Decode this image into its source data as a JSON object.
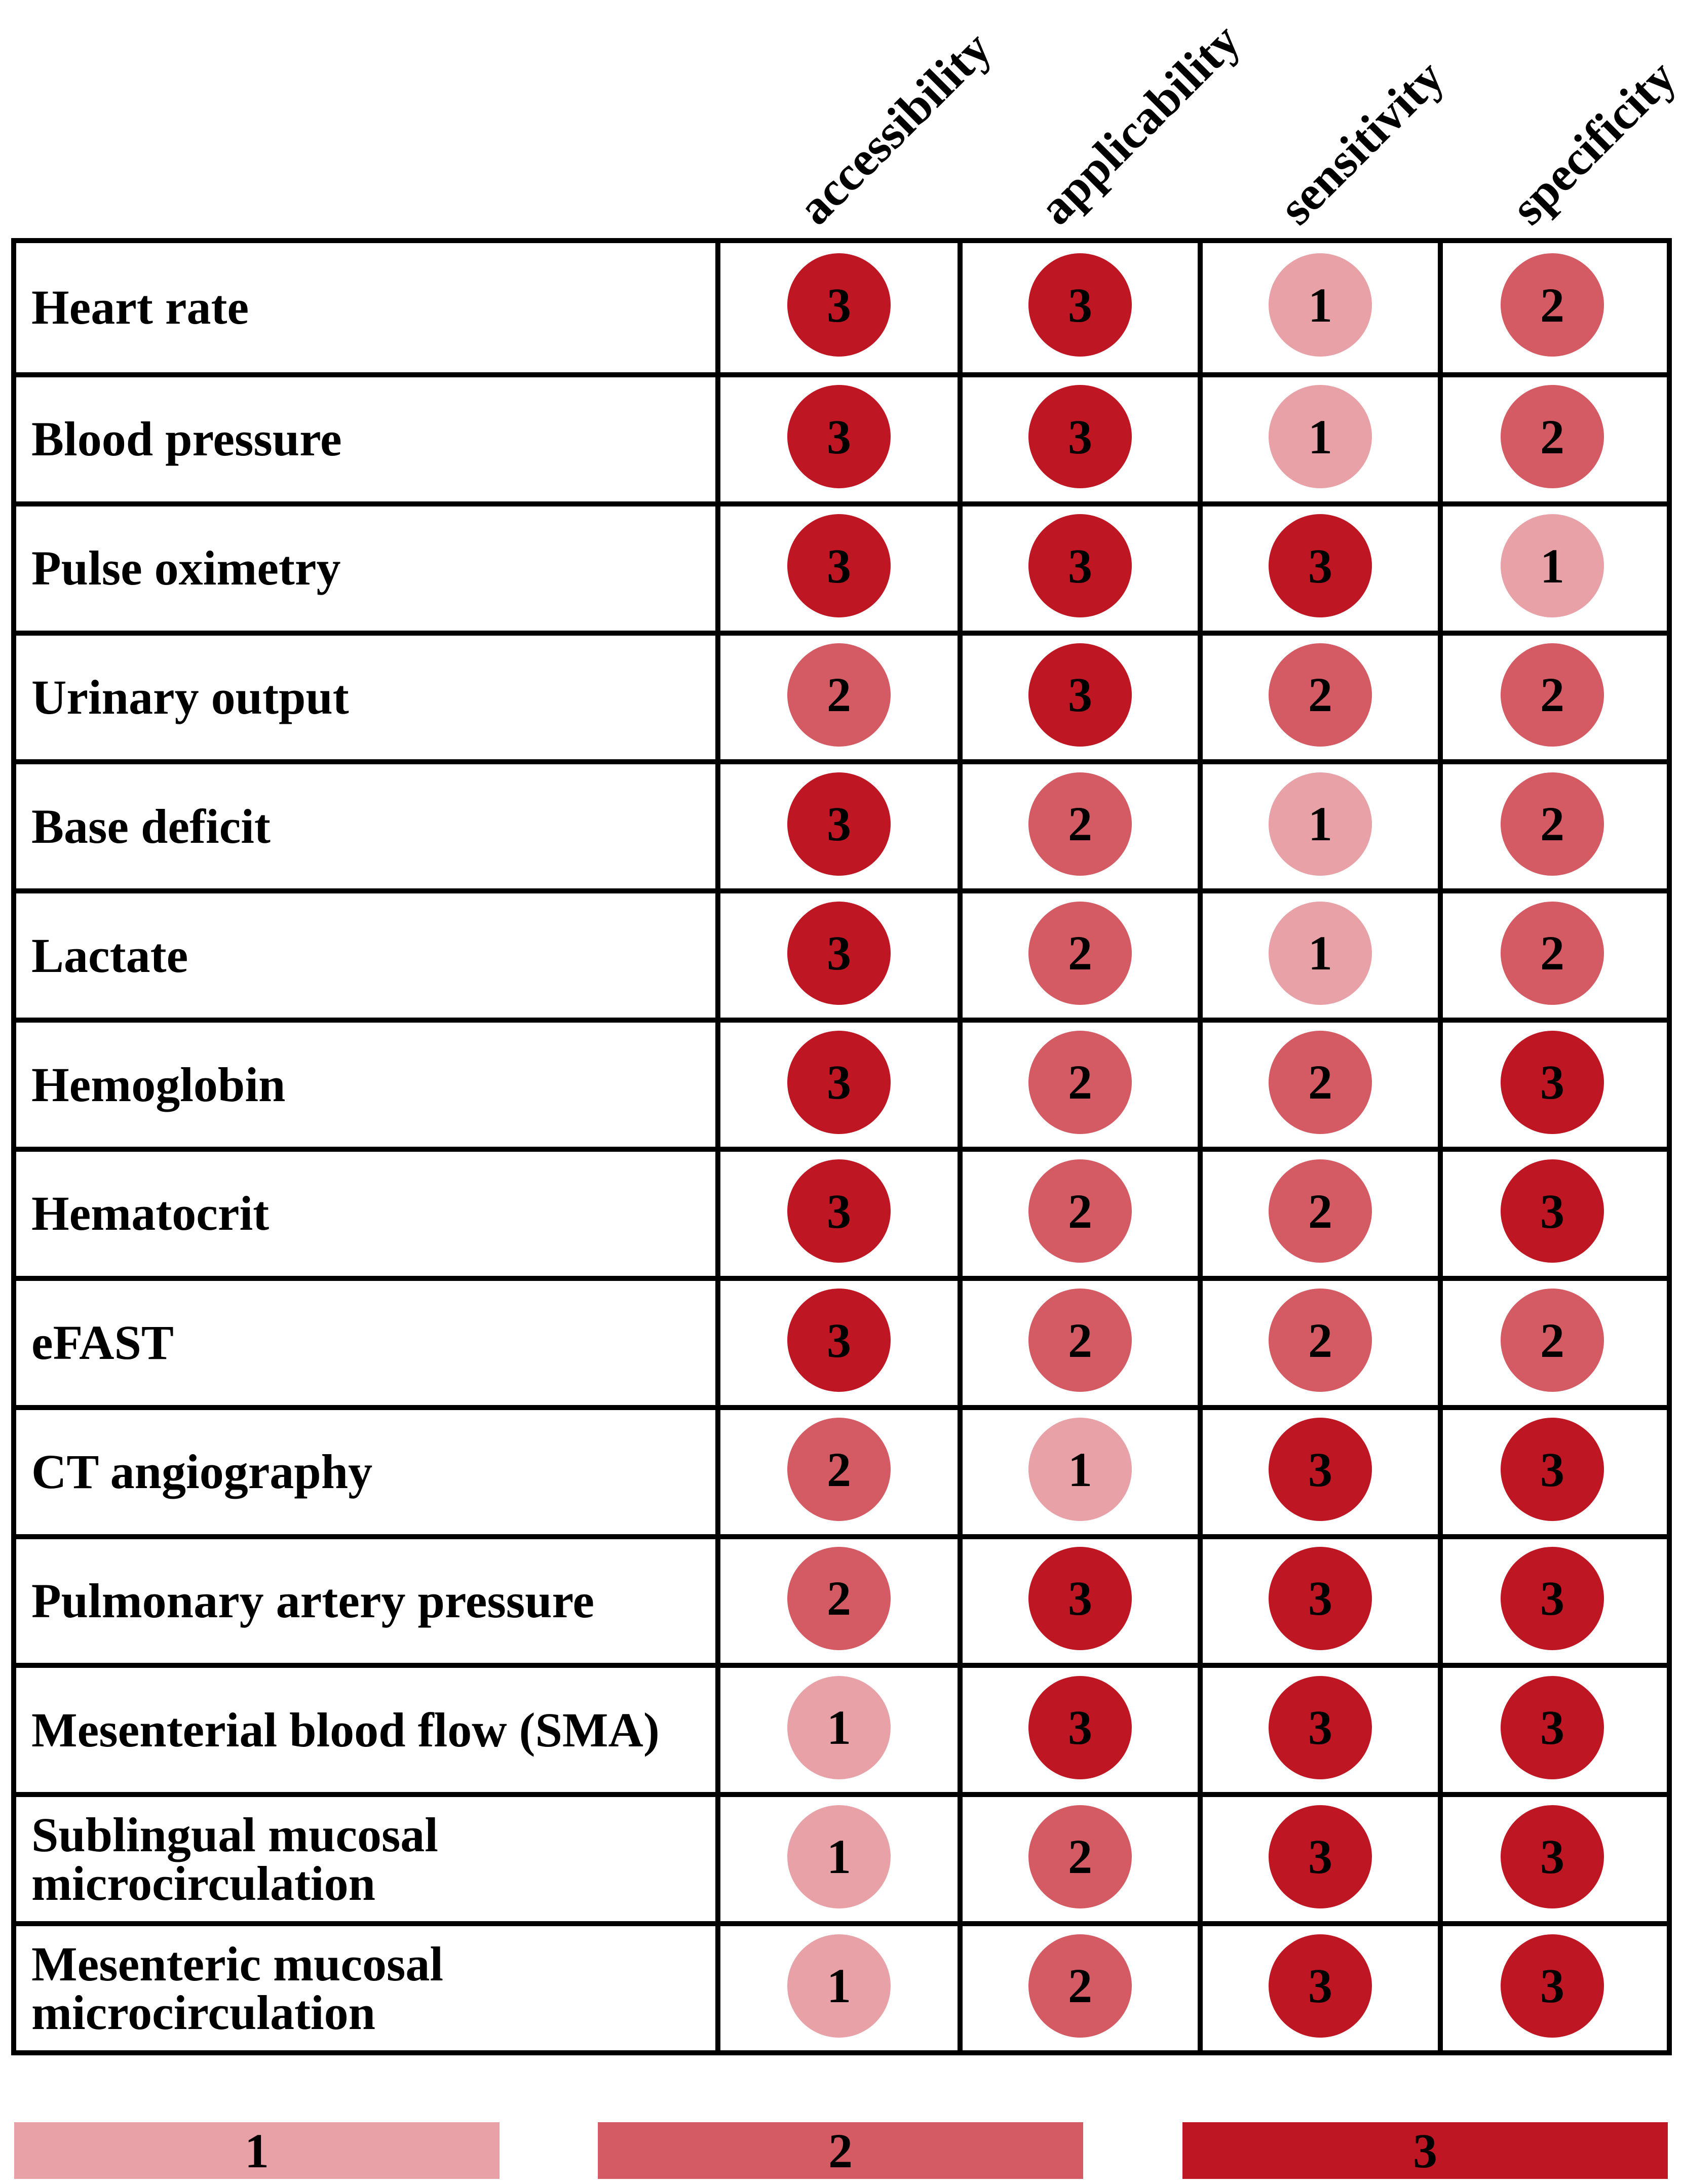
{
  "chart_data": {
    "type": "table",
    "columns": [
      "accessibility",
      "applicability",
      "sensitivity",
      "specificity"
    ],
    "rows": [
      {
        "label": "Heart rate",
        "values": [
          3,
          3,
          1,
          2
        ]
      },
      {
        "label": "Blood pressure",
        "values": [
          3,
          3,
          1,
          2
        ]
      },
      {
        "label": "Pulse oximetry",
        "values": [
          3,
          3,
          3,
          1
        ]
      },
      {
        "label": "Urinary output",
        "values": [
          2,
          3,
          2,
          2
        ]
      },
      {
        "label": "Base deficit",
        "values": [
          3,
          2,
          1,
          2
        ]
      },
      {
        "label": "Lactate",
        "values": [
          3,
          2,
          1,
          2
        ]
      },
      {
        "label": "Hemoglobin",
        "values": [
          3,
          2,
          2,
          3
        ]
      },
      {
        "label": "Hematocrit",
        "values": [
          3,
          2,
          2,
          3
        ]
      },
      {
        "label": "eFAST",
        "values": [
          3,
          2,
          2,
          2
        ]
      },
      {
        "label": "CT angiography",
        "values": [
          2,
          1,
          3,
          3
        ]
      },
      {
        "label": "Pulmonary artery pressure",
        "values": [
          2,
          3,
          3,
          3
        ]
      },
      {
        "label": "Mesenterial blood flow (SMA)",
        "values": [
          1,
          3,
          3,
          3
        ]
      },
      {
        "label": "Sublingual mucosal microcirculation",
        "values": [
          1,
          2,
          3,
          3
        ]
      },
      {
        "label": "Mesenteric mucosal microcirculation",
        "values": [
          1,
          2,
          3,
          3
        ]
      }
    ],
    "legend": [
      {
        "value": "1",
        "color": "#e8a2a7"
      },
      {
        "value": "2",
        "color": "#d45a63"
      },
      {
        "value": "3",
        "color": "#be1622"
      }
    ]
  }
}
